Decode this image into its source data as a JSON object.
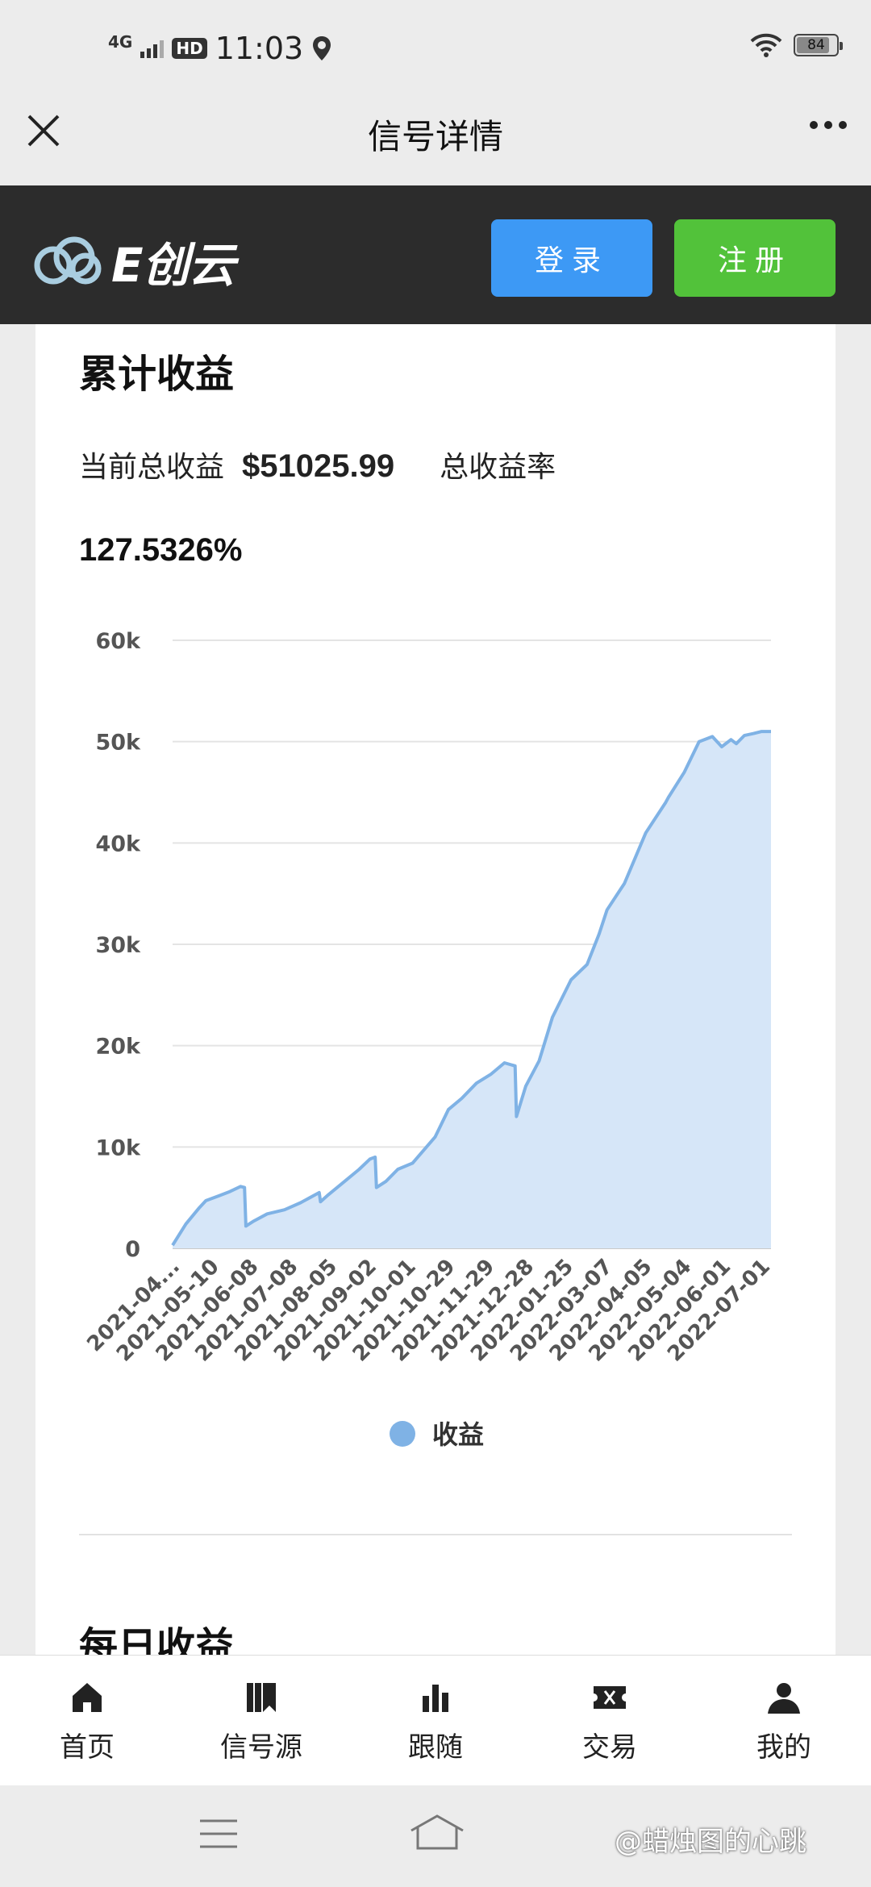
{
  "status_bar": {
    "network": "4G",
    "hd": "HD",
    "time": "11:03",
    "battery": "84",
    "battery_level": 0.84
  },
  "nav": {
    "title": "信号详情"
  },
  "header": {
    "logo_text": "E创云",
    "login_label": "登录",
    "register_label": "注册",
    "colors": {
      "login": "#3d99f5",
      "register": "#52c23a"
    }
  },
  "summary": {
    "section_title": "累计收益",
    "total_profit_label": "当前总收益",
    "total_profit_value": "$51025.99",
    "total_rate_label": "总收益率",
    "total_rate_value": "127.5326%"
  },
  "chart_data": {
    "type": "area",
    "color": "#7fb2e5",
    "fill": "#d6e6f8",
    "y_ticks": [
      "0",
      "10k",
      "20k",
      "30k",
      "40k",
      "50k",
      "60k"
    ],
    "ylim": [
      0,
      60000
    ],
    "grid": true,
    "legend_position": "bottom-center",
    "x_tick_labels": [
      "2021-04...",
      "2021-05-10",
      "2021-06-08",
      "2021-07-08",
      "2021-08-05",
      "2021-09-02",
      "2021-10-01",
      "2021-10-29",
      "2021-11-29",
      "2021-12-28",
      "2022-01-25",
      "2022-03-07",
      "2022-04-05",
      "2022-05-04",
      "2022-06-01",
      "2022-07-01"
    ],
    "series": [
      {
        "name": "收益",
        "x": [
          "2021-04-15",
          "2021-04-25",
          "2021-05-05",
          "2021-05-10",
          "2021-05-20",
          "2021-05-28",
          "2021-06-05",
          "2021-06-08",
          "2021-06-09",
          "2021-06-15",
          "2021-06-25",
          "2021-07-08",
          "2021-07-20",
          "2021-08-03",
          "2021-08-04",
          "2021-08-10",
          "2021-08-22",
          "2021-09-02",
          "2021-09-10",
          "2021-09-14",
          "2021-09-15",
          "2021-09-22",
          "2021-10-01",
          "2021-10-12",
          "2021-10-29",
          "2021-11-08",
          "2021-11-18",
          "2021-11-29",
          "2021-12-10",
          "2021-12-20",
          "2021-12-28",
          "2021-12-29",
          "2022-01-05",
          "2022-01-15",
          "2022-01-25",
          "2022-02-08",
          "2022-02-20",
          "2022-03-01",
          "2022-03-07",
          "2022-03-20",
          "2022-04-05",
          "2022-04-20",
          "2022-04-22",
          "2022-05-04",
          "2022-05-15",
          "2022-05-25",
          "2022-06-01",
          "2022-06-08",
          "2022-06-12",
          "2022-06-18",
          "2022-06-25",
          "2022-07-01",
          "2022-07-08"
        ],
        "values": [
          300,
          2400,
          4000,
          4700,
          5200,
          5600,
          6100,
          6000,
          2200,
          2700,
          3400,
          3800,
          4500,
          5500,
          4600,
          5300,
          6600,
          7800,
          8800,
          9000,
          6000,
          6600,
          7800,
          8400,
          11000,
          13700,
          14800,
          16300,
          17200,
          18300,
          18000,
          13000,
          16000,
          18500,
          22800,
          26500,
          28000,
          31000,
          33400,
          36000,
          41000,
          44000,
          44500,
          47000,
          50000,
          50500,
          49500,
          50200,
          49800,
          50600,
          50800,
          51000,
          51000
        ]
      }
    ]
  },
  "footer_next_title": "每日收益",
  "tabs": [
    {
      "label": "首页",
      "icon": "home-icon"
    },
    {
      "label": "信号源",
      "icon": "signal-source-icon"
    },
    {
      "label": "跟随",
      "icon": "bar-chart-icon"
    },
    {
      "label": "交易",
      "icon": "ticket-icon"
    },
    {
      "label": "我的",
      "icon": "user-icon"
    }
  ],
  "watermark": "@蜡烛图的心跳"
}
